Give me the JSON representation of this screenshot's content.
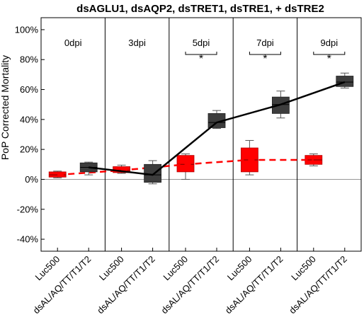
{
  "chart_data": {
    "type": "box",
    "title": "dsAGLU1, dsAQP2, dsTRET1, dsTRE1, + dsTRE2",
    "ylabel": "PoP Corrected Mortality",
    "xlabel": "",
    "ylim": [
      -48,
      108
    ],
    "yticks": [
      -40,
      -20,
      0,
      20,
      40,
      60,
      80,
      100
    ],
    "ytick_labels": [
      "-40%",
      "-20%",
      "0%",
      "20%",
      "40%",
      "60%",
      "80%",
      "100%"
    ],
    "panels": [
      {
        "label": "0dpi",
        "significance": ""
      },
      {
        "label": "3dpi",
        "significance": ""
      },
      {
        "label": "5dpi",
        "significance": "*"
      },
      {
        "label": "7dpi",
        "significance": "*"
      },
      {
        "label": "9dpi",
        "significance": "*"
      }
    ],
    "group_labels": [
      "Luc500",
      "dsAL/AQ/TT/T1/T2"
    ],
    "series": [
      {
        "group": "Luc500",
        "color": "#ff0000",
        "line_style": "dashed",
        "boxes": [
          {
            "min": 1,
            "q1": 1.5,
            "median": 3,
            "q3": 5,
            "max": 5.5
          },
          {
            "min": 4,
            "q1": 4.5,
            "median": 6,
            "q3": 8.5,
            "max": 9.5
          },
          {
            "min": 0,
            "q1": 5,
            "median": 10,
            "q3": 16,
            "max": 17
          },
          {
            "min": 3,
            "q1": 5,
            "median": 13,
            "q3": 21,
            "max": 26
          },
          {
            "min": 9,
            "q1": 10,
            "median": 13,
            "q3": 16,
            "max": 17
          }
        ]
      },
      {
        "group": "dsAL/AQ/TT/T1/T2",
        "color": "#000000",
        "box_color": "#3d3d3d",
        "line_style": "solid",
        "boxes": [
          {
            "min": 3,
            "q1": 5,
            "median": 8,
            "q3": 11,
            "max": 11.5
          },
          {
            "min": -3,
            "q1": -2,
            "median": 3,
            "q3": 10,
            "max": 12.5
          },
          {
            "min": 34,
            "q1": 34.5,
            "median": 38,
            "q3": 44,
            "max": 46
          },
          {
            "min": 41,
            "q1": 44,
            "median": 50,
            "q3": 55,
            "max": 59
          },
          {
            "min": 61,
            "q1": 62,
            "median": 65,
            "q3": 69,
            "max": 71
          }
        ]
      }
    ],
    "reference_line": 0,
    "grid": false
  }
}
